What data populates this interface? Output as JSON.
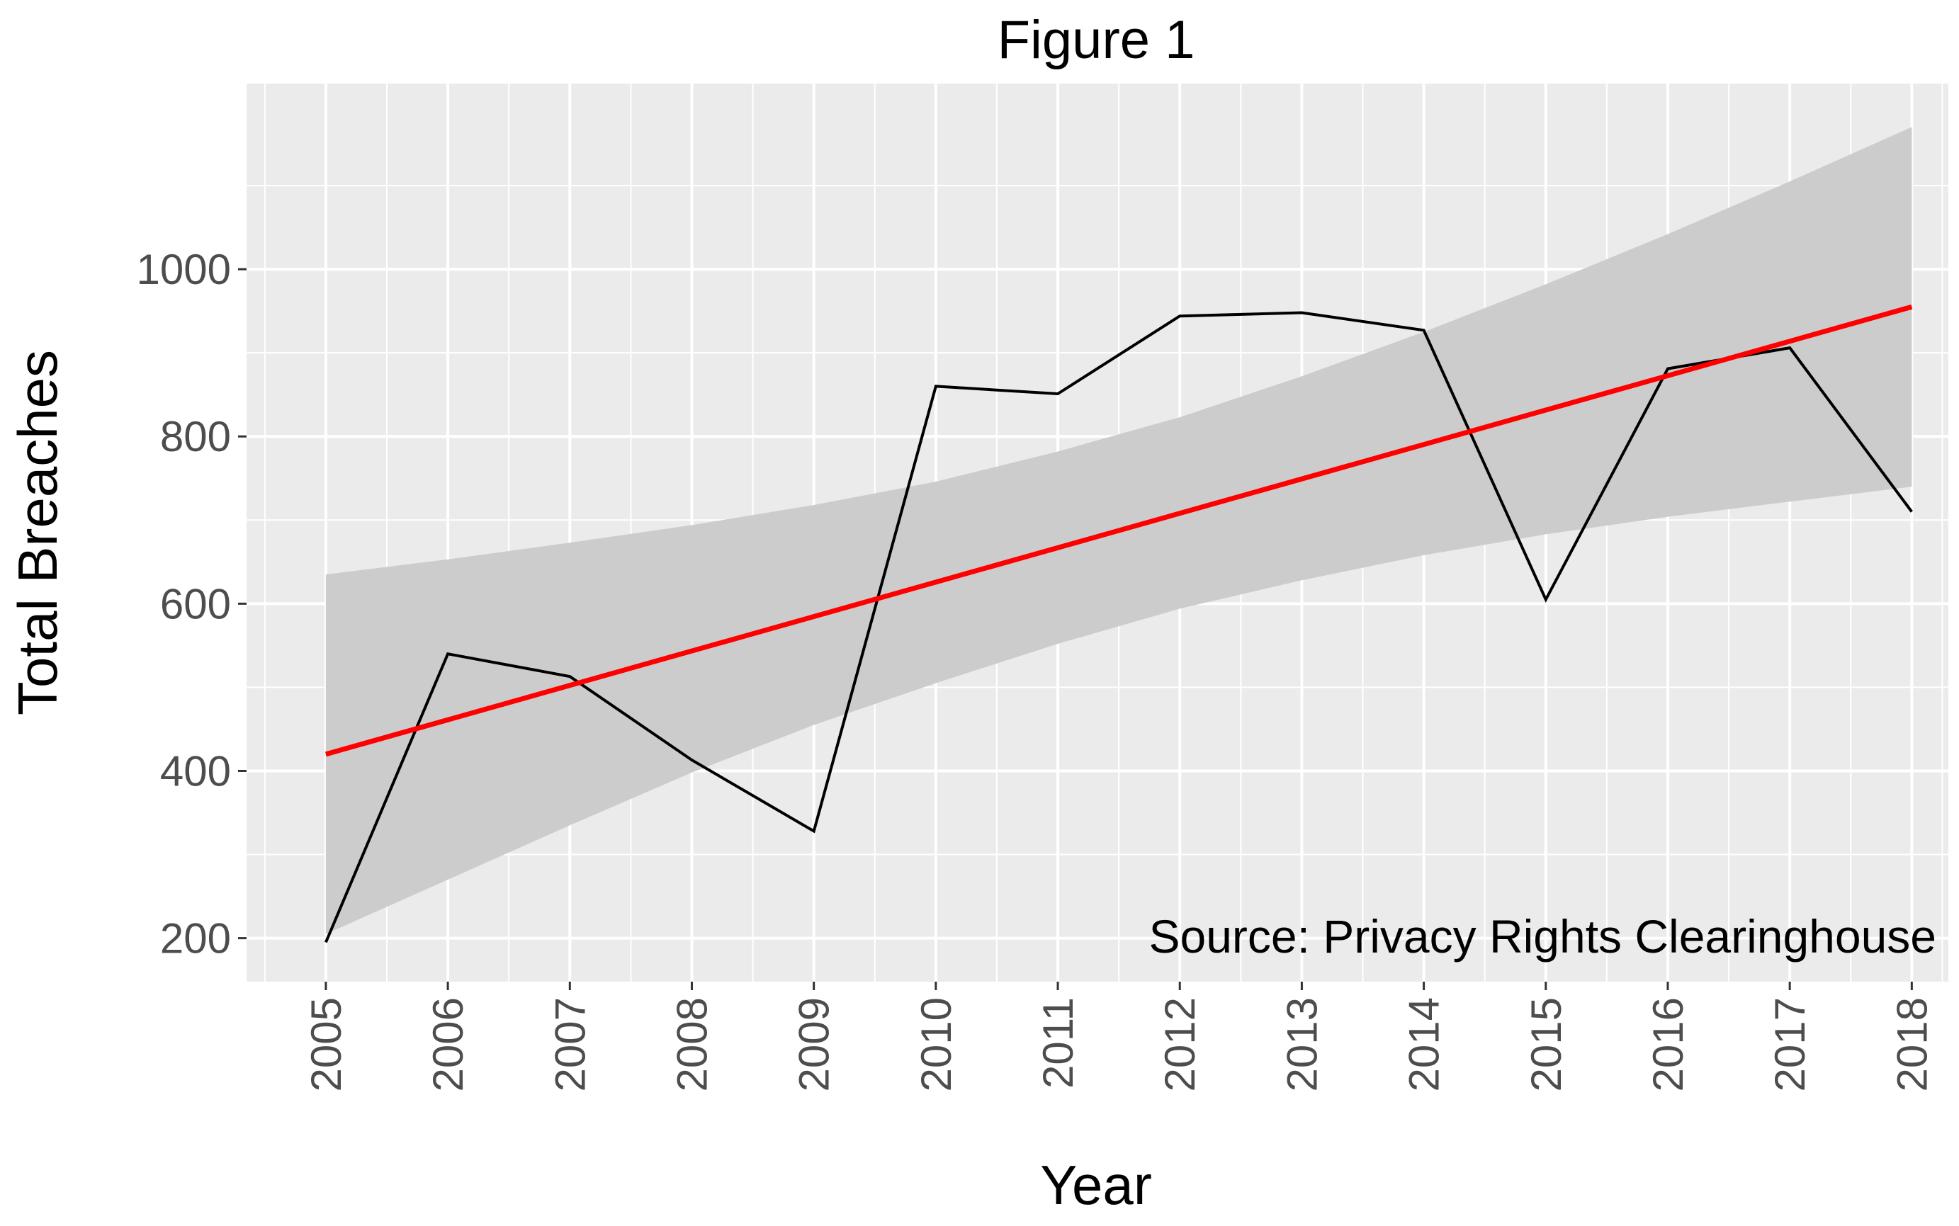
{
  "chart_data": {
    "type": "line",
    "title": "Figure 1",
    "xlabel": "Year",
    "ylabel": "Total Breaches",
    "annotation": "Source: Privacy Rights Clearinghouse",
    "xlim": [
      2004.35,
      2018.3
    ],
    "ylim": [
      148,
      1222
    ],
    "x_ticks": [
      2005,
      2006,
      2007,
      2008,
      2009,
      2010,
      2011,
      2012,
      2013,
      2014,
      2015,
      2016,
      2017,
      2018
    ],
    "y_ticks": [
      200,
      400,
      600,
      800,
      1000
    ],
    "grid": true,
    "legend": "none",
    "series": [
      {
        "type": "line",
        "color": "#000000",
        "x": [
          2005,
          2006,
          2007,
          2008,
          2009,
          2010,
          2011,
          2012,
          2013,
          2014,
          2015,
          2016,
          2017,
          2018
        ],
        "values": [
          195,
          540,
          513,
          413,
          328,
          860,
          851,
          944,
          948,
          927,
          605,
          881,
          906,
          710
        ]
      },
      {
        "type": "trend",
        "method": "linear",
        "color": "#ff0000",
        "x": [
          2005,
          2018
        ],
        "values": [
          420,
          955
        ]
      }
    ],
    "confidence_band": {
      "color": "#cccccc",
      "x": [
        2005,
        2006,
        2007,
        2008,
        2009,
        2010,
        2011,
        2012,
        2013,
        2014,
        2015,
        2016,
        2017,
        2018
      ],
      "lower": [
        205,
        270,
        335,
        398,
        455,
        505,
        552,
        594,
        628,
        658,
        683,
        704,
        722,
        740
      ],
      "upper": [
        635,
        653,
        673,
        694,
        718,
        746,
        782,
        823,
        872,
        925,
        982,
        1042,
        1105,
        1170
      ]
    }
  }
}
